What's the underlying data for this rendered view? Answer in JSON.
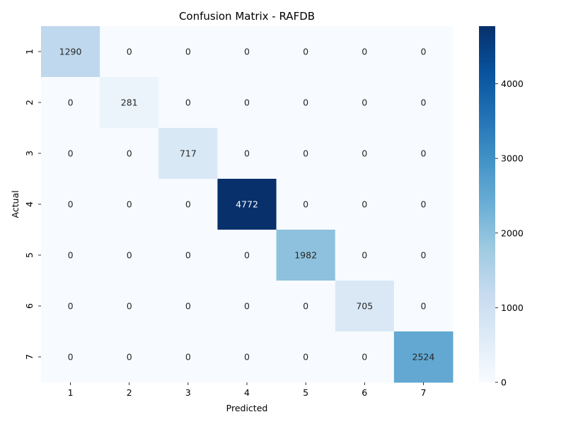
{
  "chart_data": {
    "type": "heatmap",
    "title": "Confusion Matrix - RAFDB",
    "xlabel": "Predicted",
    "ylabel": "Actual",
    "x_categories": [
      "1",
      "2",
      "3",
      "4",
      "5",
      "6",
      "7"
    ],
    "y_categories": [
      "1",
      "2",
      "3",
      "4",
      "5",
      "6",
      "7"
    ],
    "values": [
      [
        1290,
        0,
        0,
        0,
        0,
        0,
        0
      ],
      [
        0,
        281,
        0,
        0,
        0,
        0,
        0
      ],
      [
        0,
        0,
        717,
        0,
        0,
        0,
        0
      ],
      [
        0,
        0,
        0,
        4772,
        0,
        0,
        0
      ],
      [
        0,
        0,
        0,
        0,
        1982,
        0,
        0
      ],
      [
        0,
        0,
        0,
        0,
        0,
        705,
        0
      ],
      [
        0,
        0,
        0,
        0,
        0,
        0,
        2524
      ]
    ],
    "colorbar": {
      "colormap": "Blues",
      "range": [
        0,
        4772
      ],
      "ticks": [
        0,
        1000,
        2000,
        3000,
        4000
      ]
    },
    "grid": false,
    "legend": "colorbar-right"
  }
}
